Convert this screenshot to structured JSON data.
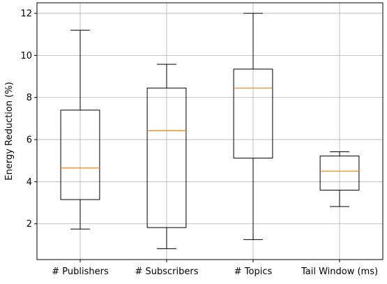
{
  "chart_data": {
    "type": "box",
    "title": "",
    "xlabel": "",
    "ylabel": "Energy Reduction (%)",
    "ylim": [
      0.3,
      12.5
    ],
    "yticks": [
      2,
      4,
      6,
      8,
      10,
      12
    ],
    "grid": true,
    "categories": [
      "# Publishers",
      "# Subscribers",
      "# Topics",
      "Tail Window (ms)"
    ],
    "boxes": [
      {
        "whisker_low": 1.75,
        "q1": 3.15,
        "median": 4.65,
        "q3": 7.4,
        "whisker_high": 11.2
      },
      {
        "whisker_low": 0.82,
        "q1": 1.82,
        "median": 6.42,
        "q3": 8.45,
        "whisker_high": 9.58
      },
      {
        "whisker_low": 1.25,
        "q1": 5.12,
        "median": 8.45,
        "q3": 9.35,
        "whisker_high": 12.0
      },
      {
        "whisker_low": 2.82,
        "q1": 3.6,
        "median": 4.5,
        "q3": 5.22,
        "whisker_high": 5.42
      }
    ],
    "colors": {
      "box": "#000000",
      "median": "#ff7f0e",
      "grid": "#b0b0b0"
    }
  }
}
